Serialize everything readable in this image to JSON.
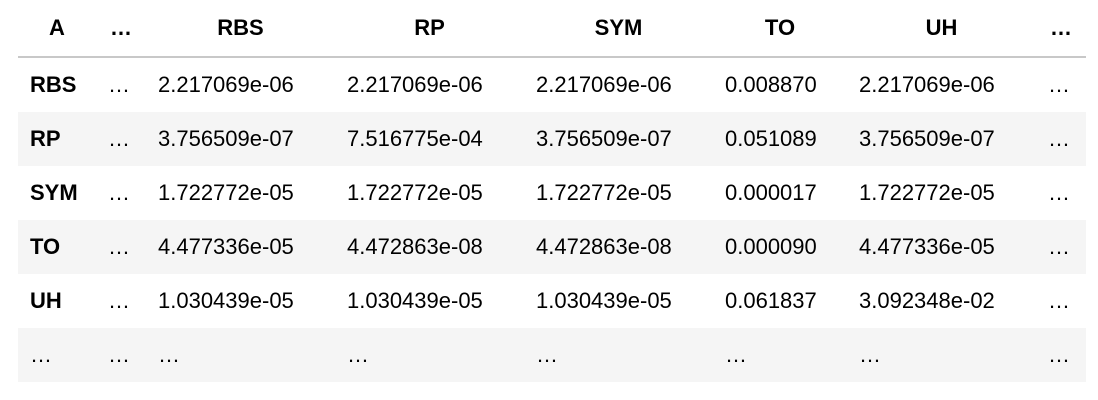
{
  "table": {
    "index_header": "A",
    "columns": [
      "…",
      "RBS",
      "RP",
      "SYM",
      "TO",
      "UH",
      "…"
    ],
    "rows": [
      {
        "index": "RBS",
        "cells": [
          "…",
          "2.217069e-06",
          "2.217069e-06",
          "2.217069e-06",
          "0.008870",
          "2.217069e-06",
          "…"
        ]
      },
      {
        "index": "RP",
        "cells": [
          "…",
          "3.756509e-07",
          "7.516775e-04",
          "3.756509e-07",
          "0.051089",
          "3.756509e-07",
          "…"
        ]
      },
      {
        "index": "SYM",
        "cells": [
          "…",
          "1.722772e-05",
          "1.722772e-05",
          "1.722772e-05",
          "0.000017",
          "1.722772e-05",
          "…"
        ]
      },
      {
        "index": "TO",
        "cells": [
          "…",
          "4.477336e-05",
          "4.472863e-08",
          "4.472863e-08",
          "0.000090",
          "4.477336e-05",
          "…"
        ]
      },
      {
        "index": "UH",
        "cells": [
          "…",
          "1.030439e-05",
          "1.030439e-05",
          "1.030439e-05",
          "0.061837",
          "3.092348e-02",
          "…"
        ]
      },
      {
        "index": "…",
        "cells": [
          "…",
          "…",
          "…",
          "…",
          "…",
          "…",
          "…"
        ]
      }
    ]
  }
}
